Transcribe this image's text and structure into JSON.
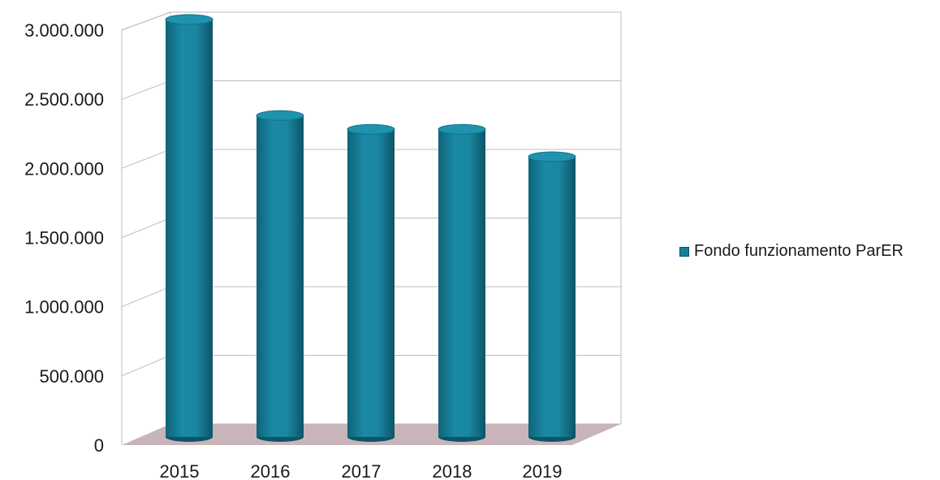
{
  "chart_data": {
    "type": "bar",
    "style": "3d-cylinder",
    "categories": [
      "2015",
      "2016",
      "2017",
      "2018",
      "2019"
    ],
    "series": [
      {
        "name": "Fondo funzionamento ParER",
        "values": [
          3000000,
          2300000,
          2200000,
          2200000,
          2000000
        ]
      }
    ],
    "y_ticks": [
      "0",
      "500.000",
      "1.000.000",
      "1.500.000",
      "2.000.000",
      "2.500.000",
      "3.000.000"
    ],
    "ylim": [
      0,
      3000000
    ],
    "grid": true,
    "legend_position": "right",
    "bar_color": "#17819a",
    "floor_color": "#c7b5ba"
  }
}
